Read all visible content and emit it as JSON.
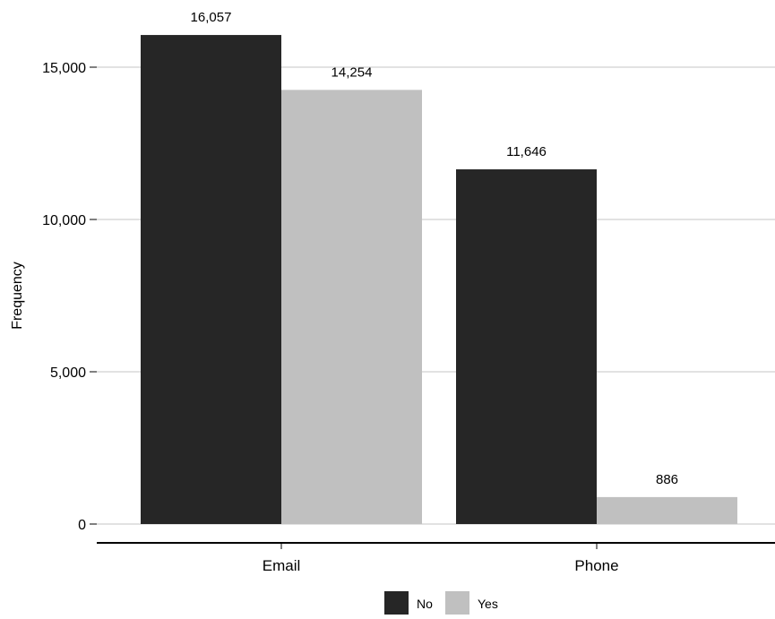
{
  "chart_data": {
    "type": "bar",
    "title": "",
    "xlabel": "",
    "ylabel": "Frequency",
    "categories": [
      "Email",
      "Phone"
    ],
    "series": [
      {
        "name": "No",
        "values": [
          16057,
          11646
        ],
        "labels": [
          "16,057",
          "11,646"
        ],
        "color": "#262626"
      },
      {
        "name": "Yes",
        "values": [
          14254,
          886
        ],
        "labels": [
          "14,254",
          "886"
        ],
        "color": "#c0c0c0"
      }
    ],
    "ylim": [
      0,
      17500
    ],
    "yticks": [
      0,
      5000,
      10000,
      15000
    ],
    "ytick_labels": [
      "0",
      "5,000",
      "10,000",
      "15,000"
    ],
    "grid": "horizontal",
    "legend_position": "bottom",
    "gridline_color": "#d9d9d9",
    "axis_color": "#000000"
  }
}
